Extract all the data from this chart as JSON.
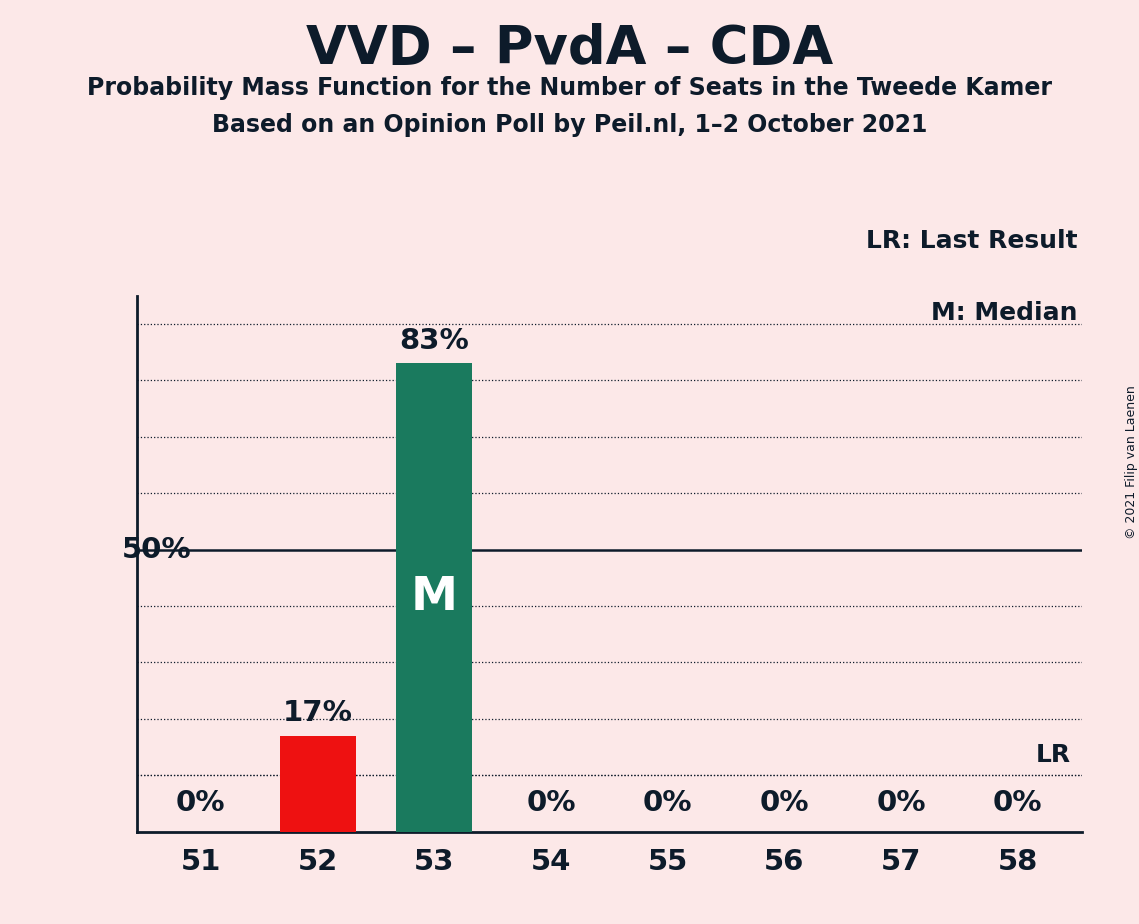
{
  "title": "VVD – PvdA – CDA",
  "subtitle1": "Probability Mass Function for the Number of Seats in the Tweede Kamer",
  "subtitle2": "Based on an Opinion Poll by Peil.nl, 1–2 October 2021",
  "copyright": "© 2021 Filip van Laenen",
  "categories": [
    51,
    52,
    53,
    54,
    55,
    56,
    57,
    58
  ],
  "values": [
    0,
    17,
    83,
    0,
    0,
    0,
    0,
    0
  ],
  "bar_colors_nonzero": {
    "1": "#ee1111",
    "2": "#1a7a5e"
  },
  "median_bar_index": 2,
  "median_label": "M",
  "lr_value": 10,
  "lr_label": "LR",
  "legend_lr": "LR: Last Result",
  "legend_m": "M: Median",
  "background_color": "#fce8e8",
  "text_color": "#0d1b2a",
  "ylim": [
    0,
    95
  ],
  "ylabel_50": "50%",
  "dotted_grid_levels": [
    10,
    20,
    30,
    40,
    60,
    70,
    80,
    90
  ],
  "solid_grid_levels": [
    50
  ],
  "title_fontsize": 38,
  "subtitle_fontsize": 17,
  "tick_fontsize": 21,
  "annotation_fontsize": 18,
  "bar_label_fontsize": 21,
  "median_label_fontsize": 34,
  "copyright_fontsize": 9
}
